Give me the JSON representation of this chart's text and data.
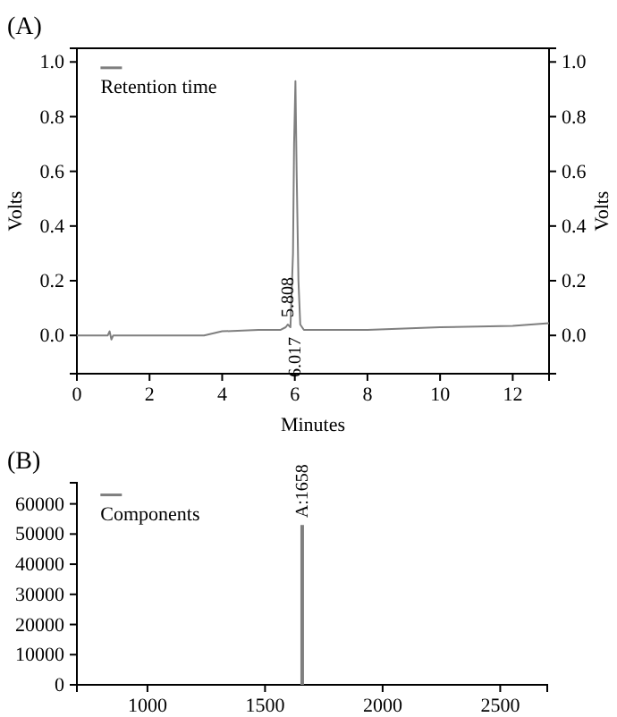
{
  "chart_data": [
    {
      "type": "line",
      "title": "(A)",
      "xlabel": "Minutes",
      "ylabel": "Volts",
      "y2label": "Volts",
      "xlim": [
        0,
        13
      ],
      "ylim": [
        -0.14,
        1.05
      ],
      "xticks": [
        0,
        2,
        4,
        6,
        8,
        10,
        12
      ],
      "yticks": [
        {
          "value": 0,
          "label": "0.0"
        },
        {
          "value": 0.2,
          "label": "0.2"
        },
        {
          "value": 0.4,
          "label": "0.4"
        },
        {
          "value": 0.6,
          "label": "0.6"
        },
        {
          "value": 0.8,
          "label": "0.8"
        },
        {
          "value": 1,
          "label": "1.0"
        }
      ],
      "y2lim": [
        -0.14,
        1.05
      ],
      "y2ticks": [
        {
          "value": 0,
          "label": "0.0"
        },
        {
          "value": 0.2,
          "label": "0.2"
        },
        {
          "value": 0.4,
          "label": "0.4"
        },
        {
          "value": 0.6,
          "label": "0.6"
        },
        {
          "value": 0.8,
          "label": "0.8"
        },
        {
          "value": 1,
          "label": "1.0"
        }
      ],
      "legend": "top left",
      "series": [
        {
          "name": "Retention time",
          "color": "#7f7f7f",
          "x": [
            0,
            0.85,
            0.9,
            0.95,
            1.0,
            2,
            3.5,
            4,
            5,
            5.6,
            5.75,
            5.808,
            5.88,
            5.95,
            5.98,
            6.017,
            6.05,
            6.1,
            6.15,
            6.25,
            7,
            8,
            10,
            12,
            12.5,
            13
          ],
          "values": [
            0,
            0,
            0.015,
            -0.015,
            0,
            0,
            0,
            0.015,
            0.02,
            0.02,
            0.03,
            0.04,
            0.03,
            0.3,
            0.7,
            0.93,
            0.6,
            0.2,
            0.04,
            0.02,
            0.02,
            0.02,
            0.03,
            0.035,
            0.04,
            0.045
          ]
        }
      ],
      "annotations": [
        {
          "text": "5.808",
          "x": 5.808,
          "y": 0.04
        },
        {
          "text": "6.017",
          "x": 6.017,
          "y": 0.02
        }
      ]
    },
    {
      "type": "bar",
      "title": "(B)",
      "xlim": [
        700,
        2700
      ],
      "ylim": [
        0,
        67000
      ],
      "xticks": [
        1000,
        1500,
        2000,
        2500
      ],
      "yticks": [
        0,
        10000,
        20000,
        30000,
        40000,
        50000,
        60000
      ],
      "legend": "top left",
      "series": [
        {
          "name": "Components",
          "color": "#7f7f7f",
          "x": [
            1658
          ],
          "values": [
            53000
          ]
        }
      ],
      "annotations": [
        {
          "text": "A:1658",
          "x": 1658,
          "y": 53000
        }
      ]
    }
  ]
}
